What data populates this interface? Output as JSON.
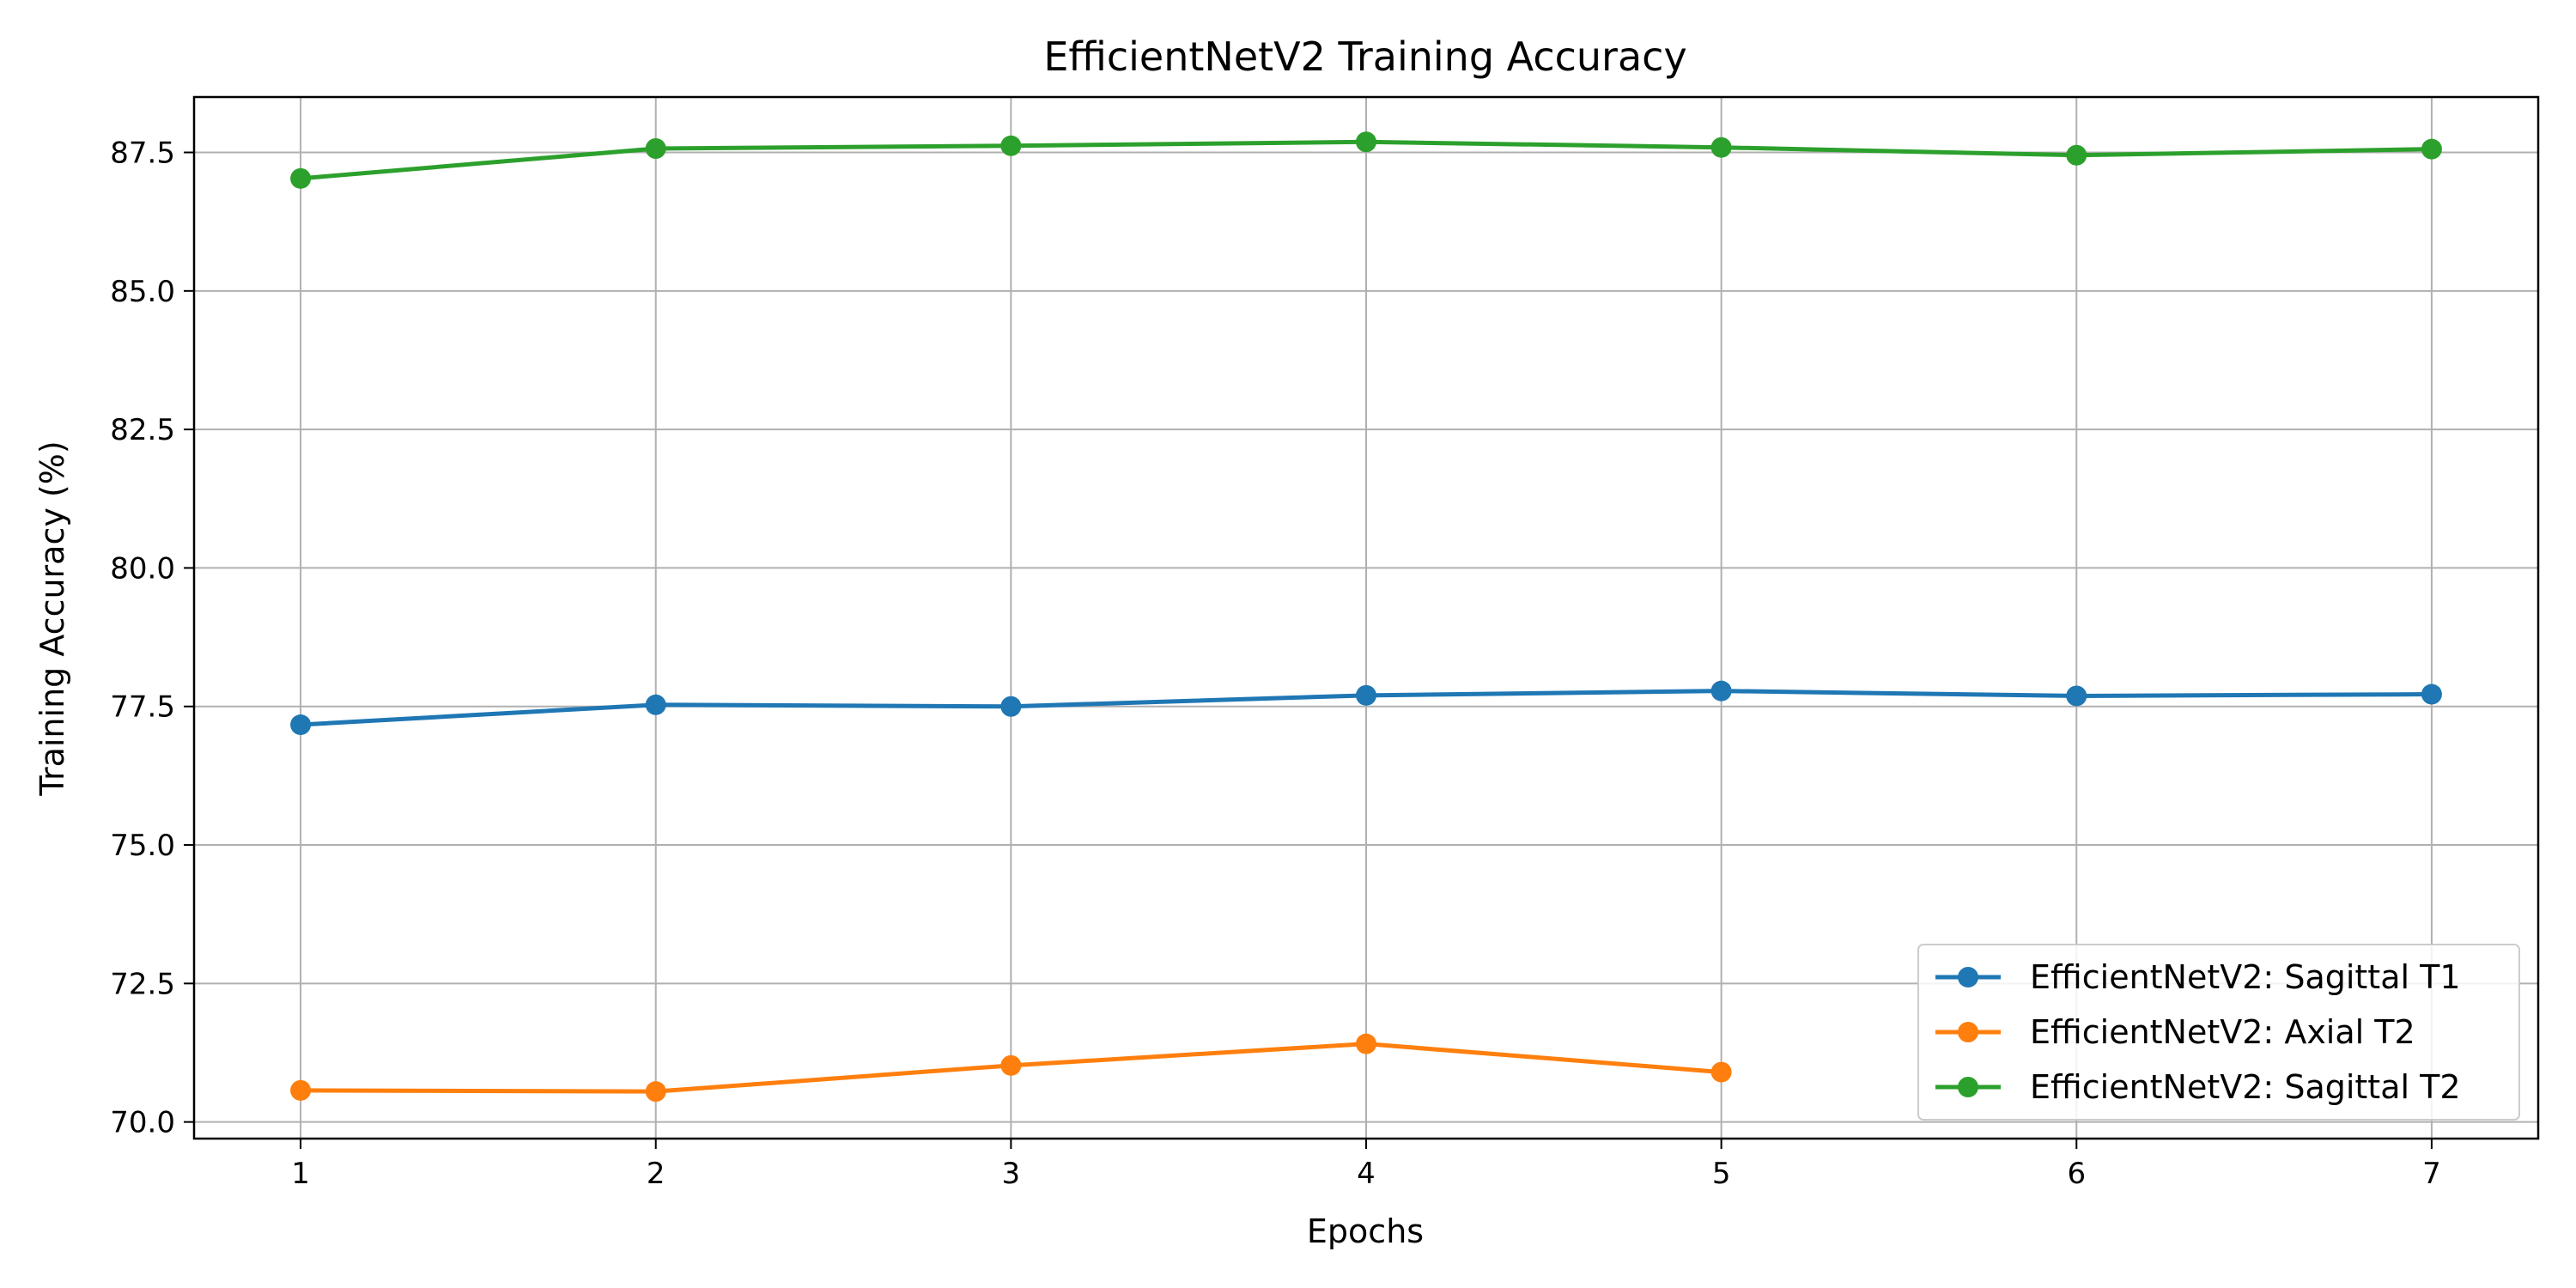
{
  "chart_data": {
    "type": "line",
    "title": "EfficientNetV2 Training Accuracy",
    "xlabel": "Epochs",
    "ylabel": "Training Accuracy (%)",
    "xlim": [
      0.7,
      7.3
    ],
    "ylim": [
      69.7,
      88.5
    ],
    "xticks": [
      1,
      2,
      3,
      4,
      5,
      6,
      7
    ],
    "yticks": [
      70.0,
      72.5,
      75.0,
      77.5,
      80.0,
      82.5,
      85.0,
      87.5
    ],
    "ytick_labels": [
      "70.0",
      "72.5",
      "75.0",
      "77.5",
      "80.0",
      "82.5",
      "85.0",
      "87.5"
    ],
    "grid": true,
    "legend_position": "bottom-right",
    "series": [
      {
        "name": "EfficientNetV2: Sagittal T1",
        "color": "#1f77b4",
        "x": [
          1,
          2,
          3,
          4,
          5,
          6,
          7
        ],
        "y": [
          77.17,
          77.53,
          77.5,
          77.7,
          77.78,
          77.69,
          77.72
        ]
      },
      {
        "name": "EfficientNetV2: Axial T2",
        "color": "#ff7f0e",
        "x": [
          1,
          2,
          3,
          4,
          5
        ],
        "y": [
          70.57,
          70.55,
          71.02,
          71.41,
          70.9
        ]
      },
      {
        "name": "EfficientNetV2: Sagittal T2",
        "color": "#2ca02c",
        "x": [
          1,
          2,
          3,
          4,
          5,
          6,
          7
        ],
        "y": [
          87.03,
          87.57,
          87.62,
          87.69,
          87.59,
          87.45,
          87.56
        ]
      }
    ]
  }
}
